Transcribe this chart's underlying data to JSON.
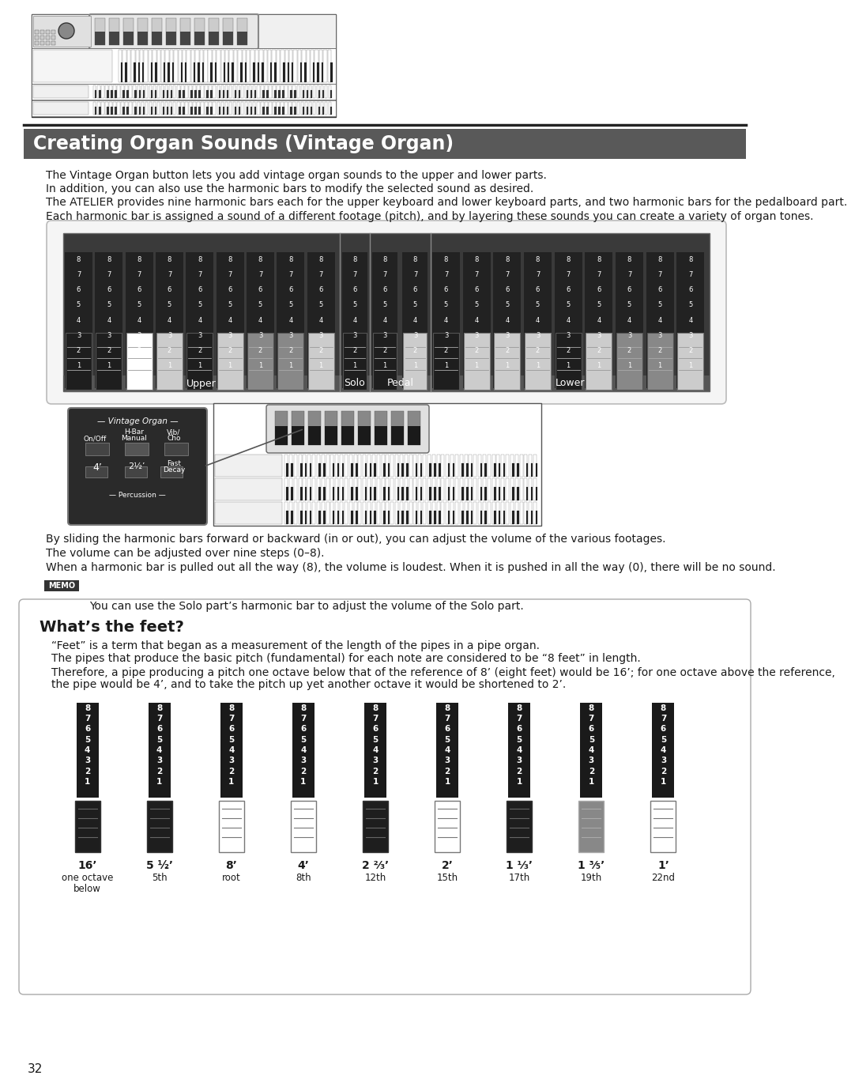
{
  "page_num": "32",
  "bg_color": "#ffffff",
  "title": "Creating Organ Sounds (Vintage Organ)",
  "title_bg": "#595959",
  "title_color": "#ffffff",
  "title_fontsize": 17,
  "body_text": [
    "The Vintage Organ button lets you add vintage organ sounds to the upper and lower parts.",
    "In addition, you can also use the harmonic bars to modify the selected sound as desired.",
    "The ATELIER provides nine harmonic bars each for the upper keyboard and lower keyboard parts, and two harmonic bars for the pedalboard part.",
    "Each harmonic bar is assigned a sound of a different footage (pitch), and by layering these sounds you can create a variety of organ tones."
  ],
  "memo_text": "You can use the Solo part’s harmonic bar to adjust the volume of the Solo part.",
  "slide_text1": "By sliding the harmonic bars forward or backward (in or out), you can adjust the volume of the various footages.",
  "slide_text2": "The volume can be adjusted over nine steps (0–8).",
  "slide_text3": "When a harmonic bar is pulled out all the way (8), the volume is loudest. When it is pushed in all the way (0), there will be no sound.",
  "whats_feet_title": "What’s the feet?",
  "whats_feet_texts": [
    "“Feet” is a term that began as a measurement of the length of the pipes in a pipe organ.",
    "The pipes that produce the basic pitch (fundamental) for each note are considered to be “8 feet” in length.",
    "Therefore, a pipe producing a pitch one octave below that of the reference of 8’ (eight feet) would be 16’; for one octave above the reference,\nthe pipe would be 4’, and to take the pitch up yet another octave it would be shortened to 2’."
  ],
  "harmonic_bar_labels": [
    "16’",
    "5 ½’",
    "8’",
    "4’",
    "2 ⅔’",
    "2’",
    "1 ⅓’",
    "1 ³⁄₅’",
    "1’"
  ],
  "harmonic_bar_subtitles": [
    "one octave\nbelow",
    "5th",
    "root",
    "8th",
    "12th",
    "15th",
    "17th",
    "19th",
    "22nd"
  ],
  "bottom_bar_colors": [
    "#1e1e1e",
    "#1e1e1e",
    "#ffffff",
    "#ffffff",
    "#1e1e1e",
    "#ffffff",
    "#1e1e1e",
    "#888888",
    "#ffffff"
  ],
  "upper_bar_handle_colors": [
    "#1e1e1e",
    "#1e1e1e",
    "#ffffff",
    "#cccccc",
    "#1e1e1e",
    "#cccccc",
    "#888888",
    "#888888",
    "#cccccc"
  ],
  "lower_bar_handle_colors": [
    "#1e1e1e",
    "#cccccc",
    "#cccccc",
    "#cccccc",
    "#1e1e1e",
    "#cccccc",
    "#888888",
    "#888888",
    "#cccccc"
  ],
  "pedal_bar_handle_colors": [
    "#1e1e1e",
    "#cccccc"
  ],
  "solo_bar_handle_color": "#1e1e1e"
}
